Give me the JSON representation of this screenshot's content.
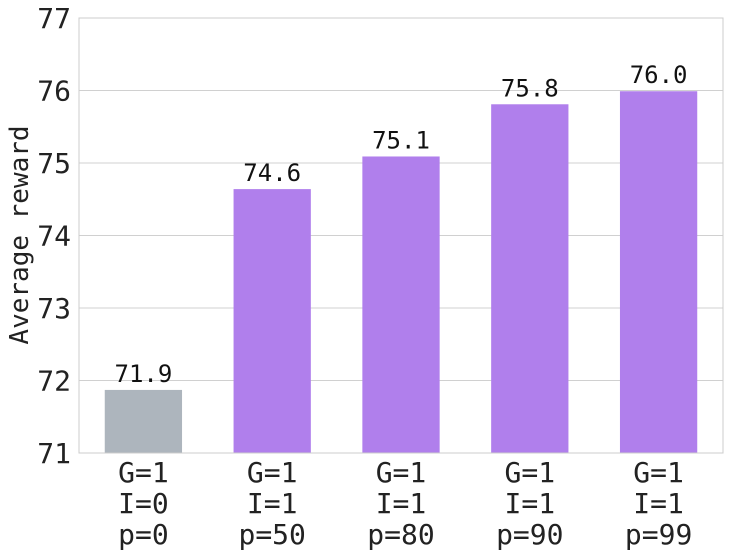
{
  "chart_data": {
    "type": "bar",
    "categories": [
      [
        "G=1",
        "I=0",
        "p=0"
      ],
      [
        "G=1",
        "I=1",
        "p=50"
      ],
      [
        "G=1",
        "I=1",
        "p=80"
      ],
      [
        "G=1",
        "I=1",
        "p=90"
      ],
      [
        "G=1",
        "I=1",
        "p=99"
      ]
    ],
    "values": [
      71.87,
      74.64,
      75.09,
      75.81,
      75.99
    ],
    "value_labels": [
      "71.9",
      "74.6",
      "75.1",
      "75.8",
      "76.0"
    ],
    "bar_colors": [
      "#adb5bd",
      "#b07fec",
      "#b07fec",
      "#b07fec",
      "#b07fec"
    ],
    "xlabel": "",
    "ylabel": "Average reward",
    "ylim": [
      71,
      77
    ],
    "yticks": [
      "71",
      "72",
      "73",
      "74",
      "75",
      "76",
      "77"
    ],
    "grid": true,
    "grid_color": "#d0d0d0"
  }
}
